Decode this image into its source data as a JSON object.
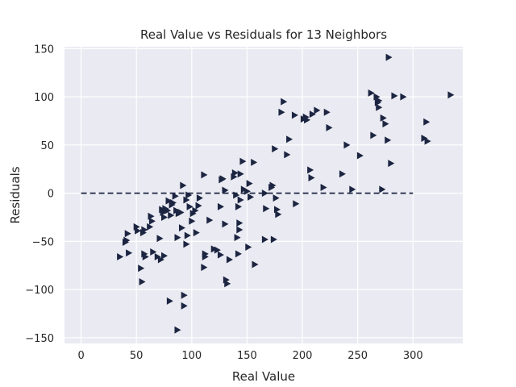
{
  "chart_data": {
    "type": "scatter",
    "title": "Real Value vs Residuals for 13 Neighbors",
    "xlabel": "Real Value",
    "ylabel": "Residuals",
    "xlim": [
      -15,
      345
    ],
    "ylim": [
      -156,
      152
    ],
    "xticks": [
      0,
      50,
      100,
      150,
      200,
      250,
      300
    ],
    "yticks": [
      -150,
      -100,
      -50,
      0,
      50,
      100,
      150
    ],
    "grid": true,
    "marker": "triangle-right",
    "colors": {
      "background": "#eaeaf2",
      "grid": "#ffffff",
      "marker": "#1c2541",
      "reference_line": "#1c2541"
    },
    "reference_line": {
      "style": "dashed",
      "y": 0,
      "x": [
        0,
        300
      ]
    },
    "points": [
      [
        35,
        -66
      ],
      [
        40,
        -51
      ],
      [
        41,
        -49
      ],
      [
        42,
        -42
      ],
      [
        43,
        -62
      ],
      [
        50,
        -35
      ],
      [
        51,
        -39
      ],
      [
        54,
        -78
      ],
      [
        55,
        -92
      ],
      [
        56,
        -41
      ],
      [
        57,
        -38
      ],
      [
        57,
        -63
      ],
      [
        58,
        -66
      ],
      [
        62,
        -35
      ],
      [
        63,
        -24
      ],
      [
        64,
        -29
      ],
      [
        65,
        -61
      ],
      [
        69,
        -66
      ],
      [
        71,
        -47
      ],
      [
        72,
        -69
      ],
      [
        73,
        -17
      ],
      [
        74,
        -20
      ],
      [
        75,
        -25
      ],
      [
        75,
        -65
      ],
      [
        76,
        -16
      ],
      [
        78,
        -18
      ],
      [
        79,
        -8
      ],
      [
        80,
        -112
      ],
      [
        81,
        -23
      ],
      [
        82,
        -12
      ],
      [
        83,
        -10
      ],
      [
        85,
        -3
      ],
      [
        86,
        -18
      ],
      [
        87,
        -142
      ],
      [
        87,
        -46
      ],
      [
        88,
        -21
      ],
      [
        90,
        -20
      ],
      [
        91,
        -36
      ],
      [
        92,
        8
      ],
      [
        93,
        -106
      ],
      [
        93,
        -117
      ],
      [
        95,
        -7
      ],
      [
        95,
        -53
      ],
      [
        96,
        -44
      ],
      [
        97,
        -2
      ],
      [
        98,
        -14
      ],
      [
        100,
        -29
      ],
      [
        101,
        -21
      ],
      [
        103,
        -18
      ],
      [
        104,
        -41
      ],
      [
        106,
        -13
      ],
      [
        107,
        -5
      ],
      [
        111,
        19
      ],
      [
        111,
        -77
      ],
      [
        112,
        -63
      ],
      [
        112,
        -66
      ],
      [
        116,
        -28
      ],
      [
        120,
        -58
      ],
      [
        123,
        -59
      ],
      [
        126,
        -64
      ],
      [
        126,
        -14
      ],
      [
        127,
        14
      ],
      [
        128,
        15
      ],
      [
        130,
        3
      ],
      [
        130,
        -32
      ],
      [
        131,
        -90
      ],
      [
        132,
        -94
      ],
      [
        134,
        -69
      ],
      [
        138,
        17
      ],
      [
        139,
        21
      ],
      [
        140,
        -2
      ],
      [
        141,
        -46
      ],
      [
        142,
        -63
      ],
      [
        142,
        -14
      ],
      [
        143,
        -31
      ],
      [
        143,
        -38
      ],
      [
        144,
        20
      ],
      [
        144,
        -7
      ],
      [
        146,
        33
      ],
      [
        147,
        4
      ],
      [
        150,
        2
      ],
      [
        151,
        -56
      ],
      [
        152,
        10
      ],
      [
        153,
        -4
      ],
      [
        156,
        32
      ],
      [
        157,
        -74
      ],
      [
        166,
        0
      ],
      [
        166,
        -48
      ],
      [
        167,
        -16
      ],
      [
        172,
        6
      ],
      [
        173,
        8
      ],
      [
        174,
        -48
      ],
      [
        175,
        46
      ],
      [
        176,
        -5
      ],
      [
        177,
        -17
      ],
      [
        178,
        -22
      ],
      [
        181,
        84
      ],
      [
        183,
        95
      ],
      [
        186,
        40
      ],
      [
        188,
        56
      ],
      [
        193,
        81
      ],
      [
        194,
        -11
      ],
      [
        201,
        77
      ],
      [
        203,
        79
      ],
      [
        204,
        76
      ],
      [
        207,
        24
      ],
      [
        208,
        16
      ],
      [
        209,
        82
      ],
      [
        213,
        86
      ],
      [
        219,
        6
      ],
      [
        222,
        84
      ],
      [
        224,
        68
      ],
      [
        236,
        20
      ],
      [
        240,
        50
      ],
      [
        245,
        4
      ],
      [
        252,
        39
      ],
      [
        262,
        104
      ],
      [
        264,
        60
      ],
      [
        267,
        100
      ],
      [
        268,
        94
      ],
      [
        269,
        96
      ],
      [
        269,
        89
      ],
      [
        272,
        4
      ],
      [
        273,
        78
      ],
      [
        275,
        72
      ],
      [
        277,
        55
      ],
      [
        278,
        141
      ],
      [
        280,
        31
      ],
      [
        283,
        101
      ],
      [
        291,
        100
      ],
      [
        310,
        57
      ],
      [
        312,
        74
      ],
      [
        313,
        54
      ],
      [
        334,
        102
      ]
    ]
  }
}
